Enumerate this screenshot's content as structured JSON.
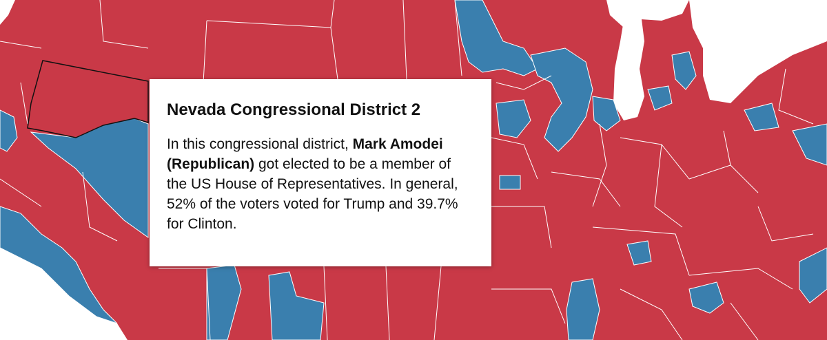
{
  "tooltip": {
    "title": "Nevada Congressional District 2",
    "body": [
      "In this congressional district, ",
      "Mark Amodei (Republican)",
      " got elected to be a member of the US House of Representatives. In general, 52% of the voters voted for Trump and 39.7% for Clinton."
    ]
  }
}
